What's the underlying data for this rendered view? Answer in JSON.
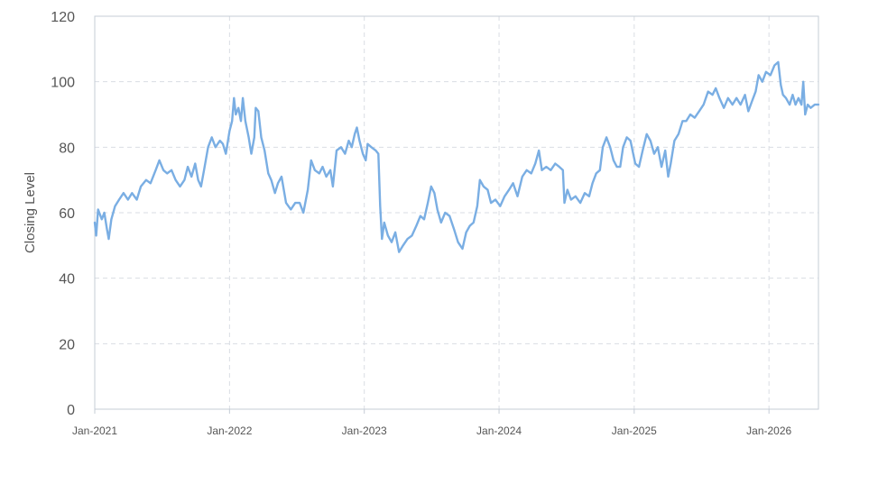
{
  "colors": {
    "line": "#7aaee3",
    "grid": "#d9dde3",
    "frame": "#c5ccd6",
    "text": "#555555"
  },
  "chart_data": {
    "type": "line",
    "title": "",
    "xlabel": "",
    "ylabel": "Closing Level",
    "grid": true,
    "ylim": [
      0,
      120
    ],
    "xlim": [
      "2021-01-01",
      "2026-05-15"
    ],
    "y_ticks": [
      0,
      20,
      40,
      60,
      80,
      100,
      120
    ],
    "x_ticks": [
      {
        "date": "2021-01-01",
        "label": "Jan-2021"
      },
      {
        "date": "2022-01-01",
        "label": "Jan-2022"
      },
      {
        "date": "2023-01-01",
        "label": "Jan-2023"
      },
      {
        "date": "2024-01-01",
        "label": "Jan-2024"
      },
      {
        "date": "2025-01-01",
        "label": "Jan-2025"
      },
      {
        "date": "2026-01-01",
        "label": "Jan-2026"
      }
    ],
    "series": [
      {
        "points": [
          [
            "2021-01-01",
            57
          ],
          [
            "2021-01-05",
            53
          ],
          [
            "2021-01-10",
            61
          ],
          [
            "2021-01-20",
            58
          ],
          [
            "2021-01-27",
            60
          ],
          [
            "2021-02-03",
            55
          ],
          [
            "2021-02-08",
            52
          ],
          [
            "2021-02-15",
            58
          ],
          [
            "2021-02-25",
            62
          ],
          [
            "2021-03-08",
            64
          ],
          [
            "2021-03-20",
            66
          ],
          [
            "2021-04-01",
            64
          ],
          [
            "2021-04-12",
            66
          ],
          [
            "2021-04-25",
            64
          ],
          [
            "2021-05-06",
            68
          ],
          [
            "2021-05-20",
            70
          ],
          [
            "2021-06-01",
            69
          ],
          [
            "2021-06-15",
            73
          ],
          [
            "2021-06-25",
            76
          ],
          [
            "2021-07-06",
            73
          ],
          [
            "2021-07-16",
            72
          ],
          [
            "2021-07-28",
            73
          ],
          [
            "2021-08-08",
            70
          ],
          [
            "2021-08-20",
            68
          ],
          [
            "2021-09-01",
            70
          ],
          [
            "2021-09-10",
            74
          ],
          [
            "2021-09-20",
            71
          ],
          [
            "2021-09-30",
            75
          ],
          [
            "2021-10-08",
            70
          ],
          [
            "2021-10-16",
            68
          ],
          [
            "2021-10-24",
            73
          ],
          [
            "2021-11-04",
            80
          ],
          [
            "2021-11-14",
            83
          ],
          [
            "2021-11-24",
            80
          ],
          [
            "2021-12-06",
            82
          ],
          [
            "2021-12-14",
            81
          ],
          [
            "2021-12-22",
            78
          ],
          [
            "2022-01-01",
            85
          ],
          [
            "2022-01-08",
            88
          ],
          [
            "2022-01-13",
            95
          ],
          [
            "2022-01-18",
            90
          ],
          [
            "2022-01-25",
            92
          ],
          [
            "2022-02-01",
            88
          ],
          [
            "2022-02-06",
            95
          ],
          [
            "2022-02-13",
            88
          ],
          [
            "2022-02-22",
            83
          ],
          [
            "2022-03-01",
            78
          ],
          [
            "2022-03-09",
            83
          ],
          [
            "2022-03-13",
            92
          ],
          [
            "2022-03-20",
            91
          ],
          [
            "2022-03-28",
            83
          ],
          [
            "2022-04-06",
            79
          ],
          [
            "2022-04-16",
            72
          ],
          [
            "2022-04-24",
            70
          ],
          [
            "2022-05-04",
            66
          ],
          [
            "2022-05-12",
            69
          ],
          [
            "2022-05-22",
            71
          ],
          [
            "2022-06-03",
            63
          ],
          [
            "2022-06-16",
            61
          ],
          [
            "2022-06-28",
            63
          ],
          [
            "2022-07-10",
            63
          ],
          [
            "2022-07-20",
            60
          ],
          [
            "2022-08-01",
            67
          ],
          [
            "2022-08-10",
            76
          ],
          [
            "2022-08-20",
            73
          ],
          [
            "2022-09-01",
            72
          ],
          [
            "2022-09-10",
            74
          ],
          [
            "2022-09-20",
            71
          ],
          [
            "2022-10-01",
            73
          ],
          [
            "2022-10-08",
            68
          ],
          [
            "2022-10-18",
            79
          ],
          [
            "2022-10-30",
            80
          ],
          [
            "2022-11-10",
            78
          ],
          [
            "2022-11-20",
            82
          ],
          [
            "2022-11-28",
            80
          ],
          [
            "2022-12-06",
            84
          ],
          [
            "2022-12-12",
            86
          ],
          [
            "2022-12-19",
            82
          ],
          [
            "2022-12-28",
            78
          ],
          [
            "2023-01-05",
            76
          ],
          [
            "2023-01-10",
            81
          ],
          [
            "2023-01-20",
            80
          ],
          [
            "2023-02-01",
            79
          ],
          [
            "2023-02-08",
            78
          ],
          [
            "2023-02-13",
            62
          ],
          [
            "2023-02-18",
            52
          ],
          [
            "2023-02-24",
            57
          ],
          [
            "2023-03-06",
            53
          ],
          [
            "2023-03-16",
            51
          ],
          [
            "2023-03-26",
            54
          ],
          [
            "2023-04-05",
            48
          ],
          [
            "2023-04-16",
            50
          ],
          [
            "2023-04-28",
            52
          ],
          [
            "2023-05-10",
            53
          ],
          [
            "2023-05-22",
            56
          ],
          [
            "2023-06-02",
            59
          ],
          [
            "2023-06-12",
            58
          ],
          [
            "2023-06-22",
            63
          ],
          [
            "2023-07-01",
            68
          ],
          [
            "2023-07-10",
            66
          ],
          [
            "2023-07-18",
            61
          ],
          [
            "2023-07-28",
            57
          ],
          [
            "2023-08-08",
            60
          ],
          [
            "2023-08-20",
            59
          ],
          [
            "2023-09-01",
            55
          ],
          [
            "2023-09-12",
            51
          ],
          [
            "2023-09-24",
            49
          ],
          [
            "2023-10-04",
            54
          ],
          [
            "2023-10-14",
            56
          ],
          [
            "2023-10-24",
            57
          ],
          [
            "2023-11-03",
            62
          ],
          [
            "2023-11-10",
            70
          ],
          [
            "2023-11-20",
            68
          ],
          [
            "2023-12-01",
            67
          ],
          [
            "2023-12-10",
            63
          ],
          [
            "2023-12-22",
            64
          ],
          [
            "2024-01-04",
            62
          ],
          [
            "2024-01-16",
            65
          ],
          [
            "2024-01-28",
            67
          ],
          [
            "2024-02-08",
            69
          ],
          [
            "2024-02-20",
            65
          ],
          [
            "2024-03-04",
            71
          ],
          [
            "2024-03-16",
            73
          ],
          [
            "2024-03-28",
            72
          ],
          [
            "2024-04-08",
            75
          ],
          [
            "2024-04-18",
            79
          ],
          [
            "2024-04-26",
            73
          ],
          [
            "2024-05-08",
            74
          ],
          [
            "2024-05-20",
            73
          ],
          [
            "2024-06-01",
            75
          ],
          [
            "2024-06-12",
            74
          ],
          [
            "2024-06-22",
            73
          ],
          [
            "2024-06-26",
            63
          ],
          [
            "2024-07-04",
            67
          ],
          [
            "2024-07-14",
            64
          ],
          [
            "2024-07-26",
            65
          ],
          [
            "2024-08-08",
            63
          ],
          [
            "2024-08-20",
            66
          ],
          [
            "2024-09-01",
            65
          ],
          [
            "2024-09-10",
            69
          ],
          [
            "2024-09-20",
            72
          ],
          [
            "2024-09-30",
            73
          ],
          [
            "2024-10-08",
            80
          ],
          [
            "2024-10-18",
            83
          ],
          [
            "2024-10-28",
            80
          ],
          [
            "2024-11-06",
            76
          ],
          [
            "2024-11-15",
            74
          ],
          [
            "2024-11-24",
            74
          ],
          [
            "2024-12-02",
            80
          ],
          [
            "2024-12-12",
            83
          ],
          [
            "2024-12-22",
            82
          ],
          [
            "2025-01-04",
            75
          ],
          [
            "2025-01-14",
            74
          ],
          [
            "2025-01-24",
            79
          ],
          [
            "2025-02-04",
            84
          ],
          [
            "2025-02-14",
            82
          ],
          [
            "2025-02-24",
            78
          ],
          [
            "2025-03-06",
            80
          ],
          [
            "2025-03-16",
            74
          ],
          [
            "2025-03-26",
            79
          ],
          [
            "2025-04-03",
            71
          ],
          [
            "2025-04-10",
            75
          ],
          [
            "2025-04-20",
            82
          ],
          [
            "2025-05-01",
            84
          ],
          [
            "2025-05-12",
            88
          ],
          [
            "2025-05-22",
            88
          ],
          [
            "2025-06-02",
            90
          ],
          [
            "2025-06-14",
            89
          ],
          [
            "2025-06-26",
            91
          ],
          [
            "2025-07-08",
            93
          ],
          [
            "2025-07-20",
            97
          ],
          [
            "2025-08-01",
            96
          ],
          [
            "2025-08-10",
            98
          ],
          [
            "2025-08-20",
            95
          ],
          [
            "2025-09-01",
            92
          ],
          [
            "2025-09-12",
            95
          ],
          [
            "2025-09-24",
            93
          ],
          [
            "2025-10-05",
            95
          ],
          [
            "2025-10-16",
            93
          ],
          [
            "2025-10-28",
            96
          ],
          [
            "2025-11-06",
            91
          ],
          [
            "2025-11-16",
            94
          ],
          [
            "2025-11-26",
            97
          ],
          [
            "2025-12-04",
            102
          ],
          [
            "2025-12-14",
            100
          ],
          [
            "2025-12-24",
            103
          ],
          [
            "2026-01-05",
            102
          ],
          [
            "2026-01-16",
            105
          ],
          [
            "2026-01-26",
            106
          ],
          [
            "2026-02-02",
            99
          ],
          [
            "2026-02-08",
            96
          ],
          [
            "2026-02-16",
            95
          ],
          [
            "2026-02-26",
            93
          ],
          [
            "2026-03-06",
            96
          ],
          [
            "2026-03-14",
            93
          ],
          [
            "2026-03-22",
            95
          ],
          [
            "2026-03-30",
            93
          ],
          [
            "2026-04-04",
            100
          ],
          [
            "2026-04-09",
            90
          ],
          [
            "2026-04-16",
            93
          ],
          [
            "2026-04-24",
            92
          ],
          [
            "2026-05-05",
            93
          ],
          [
            "2026-05-15",
            93
          ]
        ]
      }
    ]
  }
}
